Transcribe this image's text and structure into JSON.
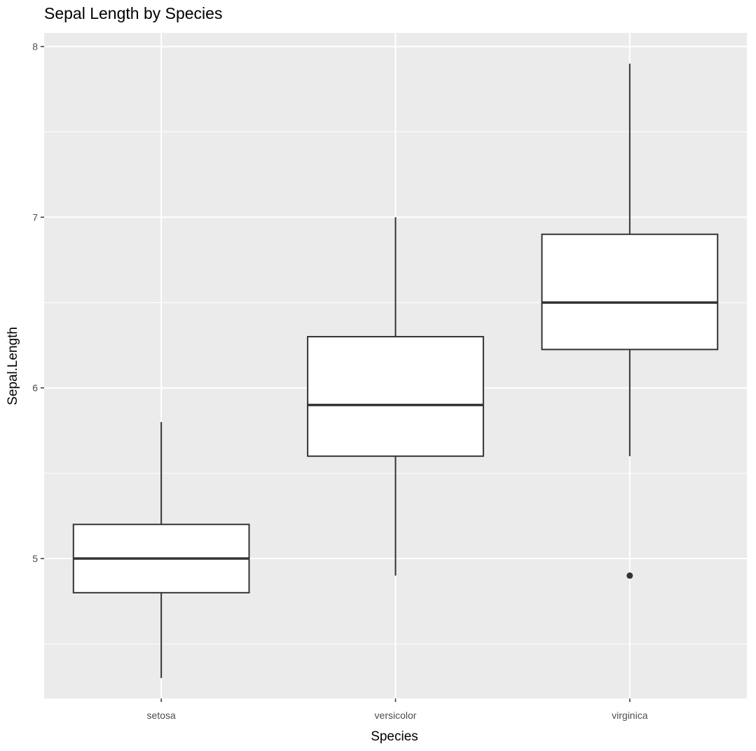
{
  "chart_data": {
    "type": "boxplot",
    "title": "Sepal Length by Species",
    "xlabel": "Species",
    "ylabel": "Sepal.Length",
    "ylim": [
      4.18,
      8.08
    ],
    "y_ticks": [
      5,
      6,
      7,
      8
    ],
    "y_minor_ticks": [
      4.5,
      5.5,
      6.5,
      7.5
    ],
    "grid": true,
    "categories": [
      "setosa",
      "versicolor",
      "virginica"
    ],
    "boxes": [
      {
        "category": "setosa",
        "whisker_low": 4.3,
        "q1": 4.8,
        "median": 5.0,
        "q3": 5.2,
        "whisker_high": 5.8,
        "outliers": []
      },
      {
        "category": "versicolor",
        "whisker_low": 4.9,
        "q1": 5.6,
        "median": 5.9,
        "q3": 6.3,
        "whisker_high": 7.0,
        "outliers": []
      },
      {
        "category": "virginica",
        "whisker_low": 5.6,
        "q1": 6.225,
        "median": 6.5,
        "q3": 6.9,
        "whisker_high": 7.9,
        "outliers": [
          4.9
        ]
      }
    ],
    "colors": {
      "panel_background": "#ebebeb",
      "grid_line": "#ffffff",
      "box_fill": "#ffffff",
      "box_stroke": "#333333",
      "tick_color": "#333333"
    }
  }
}
